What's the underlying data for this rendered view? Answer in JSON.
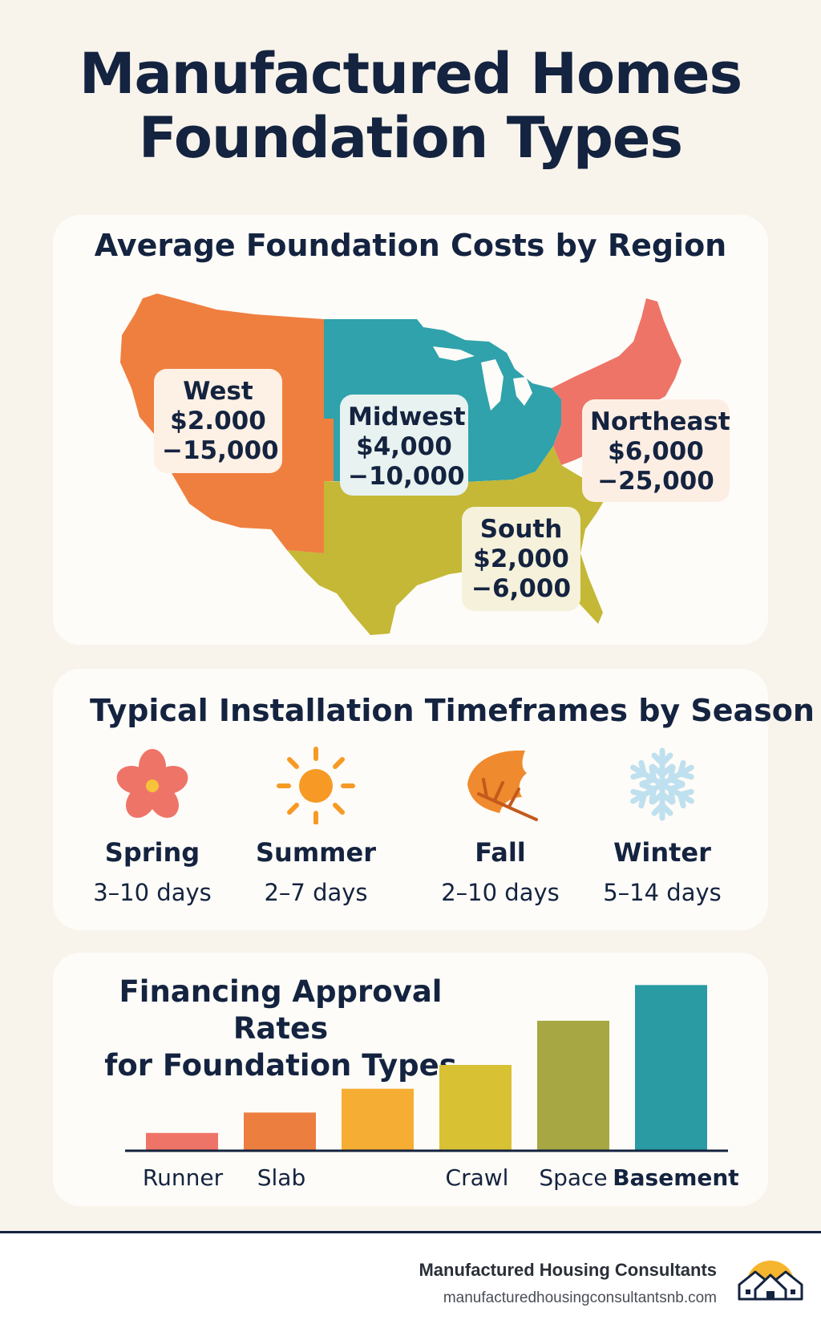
{
  "title_line1": "Manufactured Homes",
  "title_line2": "Foundation Types",
  "regions": {
    "title": "Average Foundation Costs by Region",
    "items": [
      {
        "name": "West",
        "line1": "$2.000",
        "line2": "−15,000",
        "color": "#ef7f3f"
      },
      {
        "name": "Midwest",
        "line1": "$4,000",
        "line2": "−10,000",
        "color": "#2fa2ab"
      },
      {
        "name": "Northeast",
        "line1": "$6,000",
        "line2": "−25,000",
        "color": "#ee7468"
      },
      {
        "name": "South",
        "line1": "$2,000",
        "line2": "−6,000",
        "color": "#c4b836"
      }
    ]
  },
  "seasons": {
    "title": "Typical Installation Timeframes by Season",
    "items": [
      {
        "name": "Spring",
        "days": "3–10 days",
        "icon": "flower-icon"
      },
      {
        "name": "Summer",
        "days": "2–7 days",
        "icon": "sun-icon"
      },
      {
        "name": "Fall",
        "days": "2–10 days",
        "icon": "leaf-icon"
      },
      {
        "name": "Winter",
        "days": "5–14 days",
        "icon": "snowflake-icon"
      }
    ]
  },
  "chart_data": {
    "type": "bar",
    "title": "Financing Approval Rates for Foundation Types",
    "title_line1": "Financing Approval Rates",
    "title_line2": "for Foundation Types",
    "tick_labels": [
      "Runner",
      "Slab",
      "",
      "Crawl",
      "Space",
      "Basement"
    ],
    "values": [
      10,
      22,
      36,
      50,
      76,
      97
    ],
    "ylim": [
      0,
      100
    ],
    "colors": [
      "#ef7468",
      "#ec7e40",
      "#f6ad33",
      "#d9c134",
      "#a7a744",
      "#2a9aa3"
    ]
  },
  "footer": {
    "brand": "Manufactured Housing Consultants",
    "url": "manufacturedhousingconsultantsnb.com"
  }
}
